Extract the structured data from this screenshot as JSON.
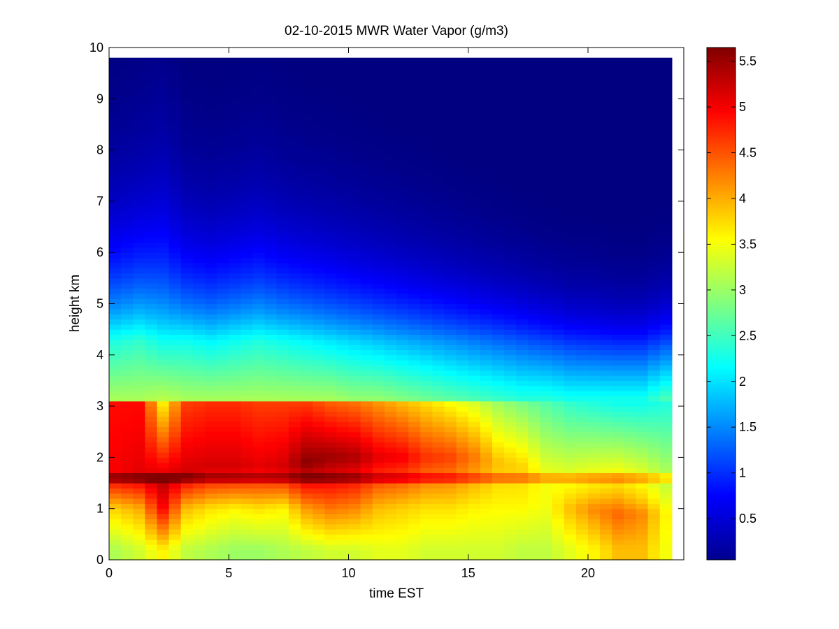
{
  "chart_data": {
    "type": "heatmap",
    "title": "02-10-2015 MWR Water Vapor (g/m3)",
    "xlabel": "time EST",
    "ylabel": "height km",
    "xlim": [
      0,
      24
    ],
    "ylim": [
      0,
      10
    ],
    "xticks": [
      0,
      5,
      10,
      15,
      20
    ],
    "yticks": [
      0,
      1,
      2,
      3,
      4,
      5,
      6,
      7,
      8,
      9,
      10
    ],
    "colormap": "jet",
    "colorbar": {
      "range": [
        0.05,
        5.65
      ],
      "ticks": [
        0.5,
        1,
        1.5,
        2,
        2.5,
        3,
        3.5,
        4,
        4.5,
        5,
        5.5
      ]
    },
    "x_range": [
      0,
      23.5
    ],
    "y_range": [
      0,
      9.75
    ],
    "profiles_note": "water vapor (g/m3) per hourly column; heights km",
    "columns": [
      {
        "t": 0.0,
        "sfc": 3.1,
        "pk_h": 1.6,
        "pk": 5.0,
        "lo_h": 1.0,
        "lo": 3.8,
        "top": 3.1,
        "mid": 2.3,
        "decay": 1.6,
        "ord": 4.9
      },
      {
        "t": 1.0,
        "sfc": 3.3,
        "pk_h": 1.6,
        "pk": 5.1,
        "lo_h": 1.0,
        "lo": 4.0,
        "top": 3.1,
        "mid": 2.4,
        "decay": 1.7,
        "ord": 4.9
      },
      {
        "t": 2.0,
        "sfc": 3.6,
        "pk_h": 1.5,
        "pk": 5.3,
        "lo_h": 1.0,
        "lo": 4.9,
        "top": 3.2,
        "mid": 2.2,
        "decay": 1.9,
        "ord": 3.6
      },
      {
        "t": 3.0,
        "sfc": 3.2,
        "pk_h": 1.7,
        "pk": 5.2,
        "lo_h": 1.0,
        "lo": 3.9,
        "top": 3.1,
        "mid": 2.2,
        "decay": 1.5,
        "ord": 4.6
      },
      {
        "t": 4.0,
        "sfc": 3.1,
        "pk_h": 1.8,
        "pk": 5.2,
        "lo_h": 1.0,
        "lo": 3.7,
        "top": 3.1,
        "mid": 2.1,
        "decay": 1.45,
        "ord": 4.7
      },
      {
        "t": 5.0,
        "sfc": 3.0,
        "pk_h": 1.8,
        "pk": 5.2,
        "lo_h": 1.0,
        "lo": 3.6,
        "top": 3.1,
        "mid": 2.2,
        "decay": 1.5,
        "ord": 4.7
      },
      {
        "t": 6.0,
        "sfc": 3.0,
        "pk_h": 1.8,
        "pk": 5.1,
        "lo_h": 1.0,
        "lo": 3.7,
        "top": 3.1,
        "mid": 2.3,
        "decay": 1.55,
        "ord": 4.6
      },
      {
        "t": 7.0,
        "sfc": 3.1,
        "pk_h": 1.8,
        "pk": 5.2,
        "lo_h": 1.0,
        "lo": 3.6,
        "top": 3.1,
        "mid": 2.2,
        "decay": 1.45,
        "ord": 4.6
      },
      {
        "t": 8.0,
        "sfc": 3.2,
        "pk_h": 1.9,
        "pk": 5.6,
        "lo_h": 1.0,
        "lo": 4.1,
        "top": 3.1,
        "mid": 2.1,
        "decay": 1.4,
        "ord": 4.6
      },
      {
        "t": 9.0,
        "sfc": 3.3,
        "pk_h": 2.0,
        "pk": 5.5,
        "lo_h": 1.0,
        "lo": 4.3,
        "top": 3.1,
        "mid": 2.0,
        "decay": 1.35,
        "ord": 4.4
      },
      {
        "t": 10.0,
        "sfc": 3.3,
        "pk_h": 2.0,
        "pk": 5.4,
        "lo_h": 1.0,
        "lo": 4.2,
        "top": 3.0,
        "mid": 1.9,
        "decay": 1.3,
        "ord": 4.3
      },
      {
        "t": 11.0,
        "sfc": 3.4,
        "pk_h": 2.0,
        "pk": 5.1,
        "lo_h": 1.0,
        "lo": 3.9,
        "top": 3.0,
        "mid": 1.8,
        "decay": 1.25,
        "ord": 4.1
      },
      {
        "t": 12.0,
        "sfc": 3.4,
        "pk_h": 2.0,
        "pk": 5.0,
        "lo_h": 1.0,
        "lo": 3.8,
        "top": 2.9,
        "mid": 1.7,
        "decay": 1.2,
        "ord": 3.9
      },
      {
        "t": 13.0,
        "sfc": 3.3,
        "pk_h": 2.0,
        "pk": 4.7,
        "lo_h": 1.0,
        "lo": 3.7,
        "top": 2.8,
        "mid": 1.6,
        "decay": 1.15,
        "ord": 3.7
      },
      {
        "t": 14.0,
        "sfc": 3.3,
        "pk_h": 2.0,
        "pk": 4.6,
        "lo_h": 1.0,
        "lo": 3.7,
        "top": 2.7,
        "mid": 1.5,
        "decay": 1.1,
        "ord": 3.5
      },
      {
        "t": 15.0,
        "sfc": 3.3,
        "pk_h": 2.0,
        "pk": 4.3,
        "lo_h": 1.0,
        "lo": 3.6,
        "top": 2.6,
        "mid": 1.4,
        "decay": 1.05,
        "ord": 3.3
      },
      {
        "t": 16.0,
        "sfc": 3.3,
        "pk_h": 1.9,
        "pk": 3.9,
        "lo_h": 1.1,
        "lo": 3.6,
        "top": 2.5,
        "mid": 1.3,
        "decay": 1.0,
        "ord": 3.0
      },
      {
        "t": 17.0,
        "sfc": 3.2,
        "pk_h": 1.8,
        "pk": 3.8,
        "lo_h": 1.1,
        "lo": 3.6,
        "top": 2.4,
        "mid": 1.2,
        "decay": 0.95,
        "ord": 2.8
      },
      {
        "t": 18.0,
        "sfc": 3.2,
        "pk_h": 1.6,
        "pk": 3.5,
        "lo_h": 1.1,
        "lo": 3.5,
        "top": 2.4,
        "mid": 1.1,
        "decay": 0.9,
        "ord": 2.6
      },
      {
        "t": 19.0,
        "sfc": 3.4,
        "pk_h": 1.4,
        "pk": 3.6,
        "lo_h": 1.0,
        "lo": 3.9,
        "top": 2.3,
        "mid": 1.0,
        "decay": 0.85,
        "ord": 2.4
      },
      {
        "t": 20.0,
        "sfc": 3.6,
        "pk_h": 1.3,
        "pk": 3.8,
        "lo_h": 1.0,
        "lo": 4.2,
        "top": 2.3,
        "mid": 0.95,
        "decay": 0.85,
        "ord": 2.3
      },
      {
        "t": 21.0,
        "sfc": 3.9,
        "pk_h": 1.3,
        "pk": 3.9,
        "lo_h": 0.9,
        "lo": 4.4,
        "top": 2.3,
        "mid": 0.9,
        "decay": 0.8,
        "ord": 2.2
      },
      {
        "t": 22.0,
        "sfc": 3.9,
        "pk_h": 1.2,
        "pk": 3.8,
        "lo_h": 0.9,
        "lo": 4.2,
        "top": 2.3,
        "mid": 0.9,
        "decay": 0.8,
        "ord": 2.2
      },
      {
        "t": 23.0,
        "sfc": 3.5,
        "pk_h": 1.2,
        "pk": 3.4,
        "lo_h": 0.9,
        "lo": 3.6,
        "top": 2.6,
        "mid": 1.1,
        "decay": 0.85,
        "ord": 2.3
      }
    ]
  }
}
